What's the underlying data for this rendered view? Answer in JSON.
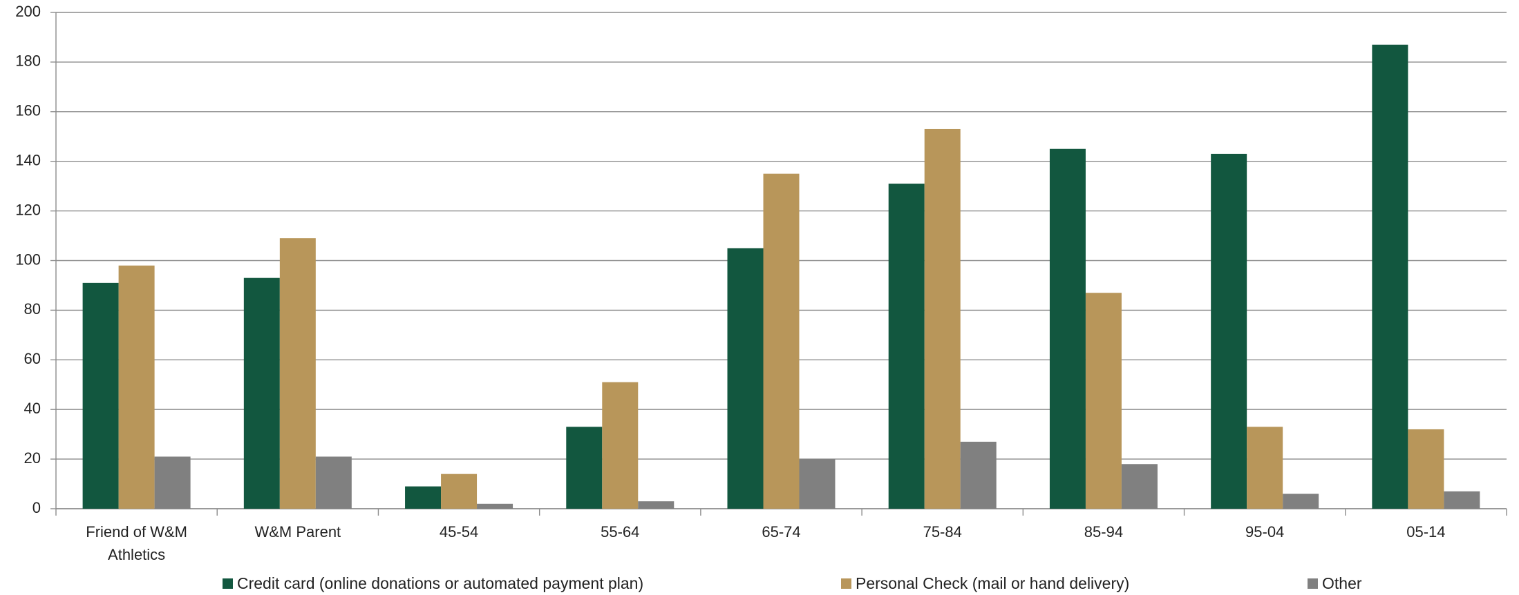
{
  "chart_data": {
    "type": "bar",
    "categories": [
      "Friend of W&M Athletics",
      "W&M Parent",
      "45-54",
      "55-64",
      "65-74",
      "75-84",
      "85-94",
      "95-04",
      "05-14"
    ],
    "series": [
      {
        "name": "Credit card (online donations or automated payment plan)",
        "color": "#12573f",
        "values": [
          91,
          93,
          9,
          33,
          105,
          131,
          145,
          143,
          187
        ]
      },
      {
        "name": "Personal Check (mail or hand delivery)",
        "color": "#b8965a",
        "values": [
          98,
          109,
          14,
          51,
          135,
          153,
          87,
          33,
          32
        ]
      },
      {
        "name": "Other",
        "color": "#808080",
        "values": [
          21,
          21,
          2,
          3,
          20,
          27,
          18,
          6,
          7
        ]
      }
    ],
    "ylim": [
      0,
      200
    ],
    "yticks": [
      0,
      20,
      40,
      60,
      80,
      100,
      120,
      140,
      160,
      180,
      200
    ],
    "grid": true,
    "legend": "bottom"
  }
}
